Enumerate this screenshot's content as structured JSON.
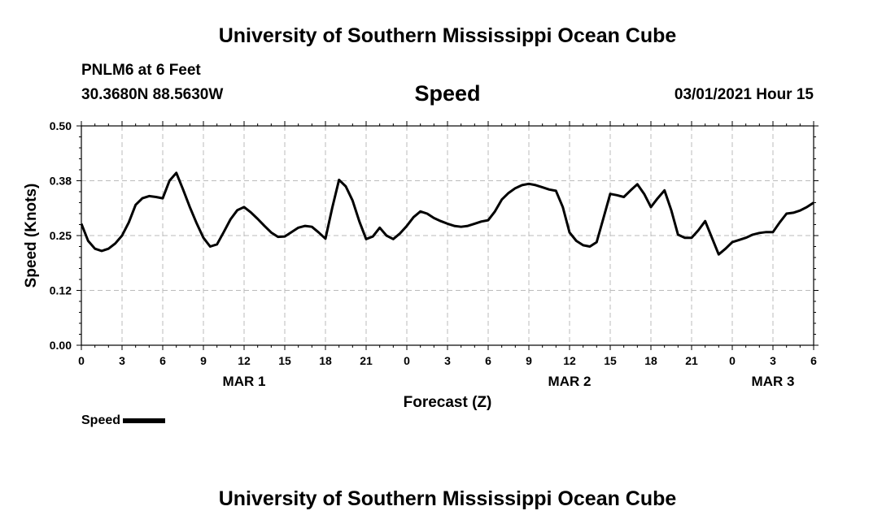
{
  "header": {
    "title_top": "University of Southern Mississippi Ocean Cube",
    "station": "PNLM6 at 6 Feet",
    "coords": "30.3680N 88.5630W",
    "chart_title": "Speed",
    "timestamp": "03/01/2021 Hour 15",
    "title_bottom": "University of Southern Mississippi Ocean Cube"
  },
  "chart_data": {
    "type": "line",
    "title": "Speed",
    "xlabel": "Forecast (Z)",
    "ylabel": "Speed (Knots)",
    "ylim": [
      0,
      0.5
    ],
    "yticks": [
      "0.00",
      "0.12",
      "0.25",
      "0.38",
      "0.50"
    ],
    "xlim": [
      0,
      54
    ],
    "xticks": [
      "0",
      "3",
      "6",
      "9",
      "12",
      "15",
      "18",
      "21",
      "0",
      "3",
      "6",
      "9",
      "12",
      "15",
      "18",
      "21",
      "0",
      "3",
      "6"
    ],
    "day_labels": [
      "MAR 1",
      "MAR 2",
      "MAR 3"
    ],
    "grid": true,
    "legend": "bottom-left",
    "series": [
      {
        "name": "Speed",
        "color": "#000000",
        "x": [
          0,
          0.5,
          1,
          1.5,
          2,
          2.5,
          3,
          3.5,
          4,
          4.5,
          5,
          5.5,
          6,
          6.5,
          7,
          7.5,
          8,
          8.5,
          9,
          9.5,
          10,
          10.5,
          11,
          11.5,
          12,
          12.5,
          13,
          13.5,
          14,
          14.5,
          15,
          15.5,
          16,
          16.5,
          17,
          17.5,
          18,
          18.5,
          19,
          19.5,
          20,
          20.5,
          21,
          21.5,
          22,
          22.5,
          23,
          23.5,
          24,
          24.5,
          25,
          25.5,
          26,
          26.5,
          27,
          27.5,
          28,
          28.5,
          29,
          29.5,
          30,
          30.5,
          31,
          31.5,
          32,
          32.5,
          33,
          33.5,
          34,
          34.5,
          35,
          35.5,
          36,
          36.5,
          37,
          37.5,
          38,
          38.5,
          39,
          39.5,
          40,
          40.5,
          41,
          41.5,
          42,
          42.5,
          43,
          43.5,
          44,
          44.5,
          45,
          45.5,
          46,
          46.5,
          47,
          47.5,
          48,
          48.5,
          49,
          49.5,
          50,
          50.5,
          51,
          51.5,
          52,
          52.5,
          53,
          53.5,
          54
        ],
        "values": [
          0.277,
          0.238,
          0.22,
          0.215,
          0.22,
          0.232,
          0.25,
          0.28,
          0.32,
          0.335,
          0.34,
          0.338,
          0.335,
          0.375,
          0.393,
          0.355,
          0.315,
          0.278,
          0.245,
          0.225,
          0.23,
          0.258,
          0.287,
          0.308,
          0.315,
          0.303,
          0.288,
          0.272,
          0.257,
          0.247,
          0.248,
          0.258,
          0.268,
          0.272,
          0.27,
          0.257,
          0.243,
          0.313,
          0.377,
          0.362,
          0.33,
          0.282,
          0.242,
          0.248,
          0.268,
          0.25,
          0.242,
          0.255,
          0.272,
          0.292,
          0.305,
          0.3,
          0.29,
          0.283,
          0.277,
          0.272,
          0.27,
          0.272,
          0.277,
          0.282,
          0.285,
          0.305,
          0.332,
          0.347,
          0.358,
          0.365,
          0.368,
          0.365,
          0.36,
          0.355,
          0.352,
          0.315,
          0.257,
          0.238,
          0.228,
          0.225,
          0.235,
          0.29,
          0.345,
          0.342,
          0.338,
          0.353,
          0.367,
          0.345,
          0.315,
          0.335,
          0.353,
          0.308,
          0.252,
          0.245,
          0.245,
          0.262,
          0.283,
          0.245,
          0.207,
          0.22,
          0.235,
          0.24,
          0.245,
          0.252,
          0.256,
          0.258,
          0.258,
          0.28,
          0.3,
          0.302,
          0.307,
          0.315,
          0.325
        ]
      }
    ]
  }
}
